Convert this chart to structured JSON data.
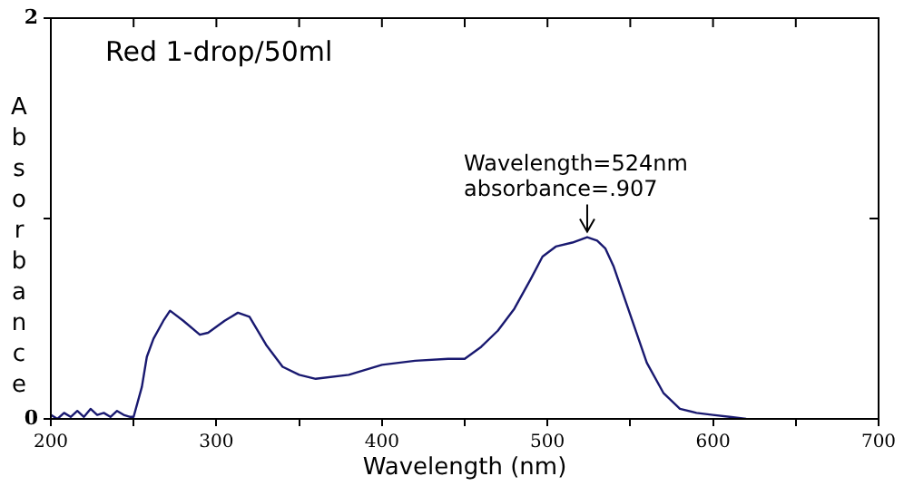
{
  "chart_data": {
    "type": "line",
    "xlabel": "Wavelength (nm)",
    "ylabel": "Absorbance",
    "annotations": [
      "Red 1-drop/50ml",
      {
        "text": "Wavelength=524nm\nabsorbance=.907",
        "x": 524,
        "y": 0.907
      }
    ],
    "xlim": [
      200,
      700
    ],
    "ylim": [
      0,
      2
    ],
    "xticks": [
      200,
      {
        "value": 250,
        "label": null
      },
      300,
      {
        "value": 350,
        "label": null
      },
      400,
      {
        "value": 450,
        "label": null
      },
      500,
      {
        "value": 550,
        "label": null
      },
      600,
      {
        "value": 650,
        "label": null
      },
      700
    ],
    "yticks": [
      0,
      {
        "value": 1,
        "label": null
      },
      2
    ],
    "grid": false,
    "legend": false,
    "marker": "none",
    "line_style": "solid",
    "series": [
      {
        "color": "#191970",
        "x": [
          200,
          204,
          208,
          212,
          216,
          220,
          224,
          228,
          232,
          236,
          240,
          244,
          248,
          250,
          255,
          258,
          262,
          268,
          272,
          280,
          290,
          295,
          305,
          313,
          320,
          330,
          340,
          350,
          360,
          380,
          400,
          420,
          440,
          450,
          460,
          470,
          480,
          490,
          497,
          505,
          515,
          524,
          530,
          535,
          540,
          550,
          560,
          570,
          580,
          590,
          600,
          610,
          620
        ],
        "values": [
          0.02,
          0.0,
          0.03,
          0.01,
          0.04,
          0.01,
          0.05,
          0.02,
          0.03,
          0.01,
          0.04,
          0.02,
          0.01,
          0.01,
          0.16,
          0.31,
          0.4,
          0.49,
          0.54,
          0.49,
          0.42,
          0.43,
          0.49,
          0.53,
          0.51,
          0.37,
          0.26,
          0.22,
          0.2,
          0.22,
          0.27,
          0.29,
          0.3,
          0.3,
          0.36,
          0.44,
          0.55,
          0.7,
          0.81,
          0.86,
          0.88,
          0.907,
          0.89,
          0.85,
          0.76,
          0.52,
          0.28,
          0.13,
          0.05,
          0.03,
          0.02,
          0.01,
          0
        ]
      }
    ]
  }
}
